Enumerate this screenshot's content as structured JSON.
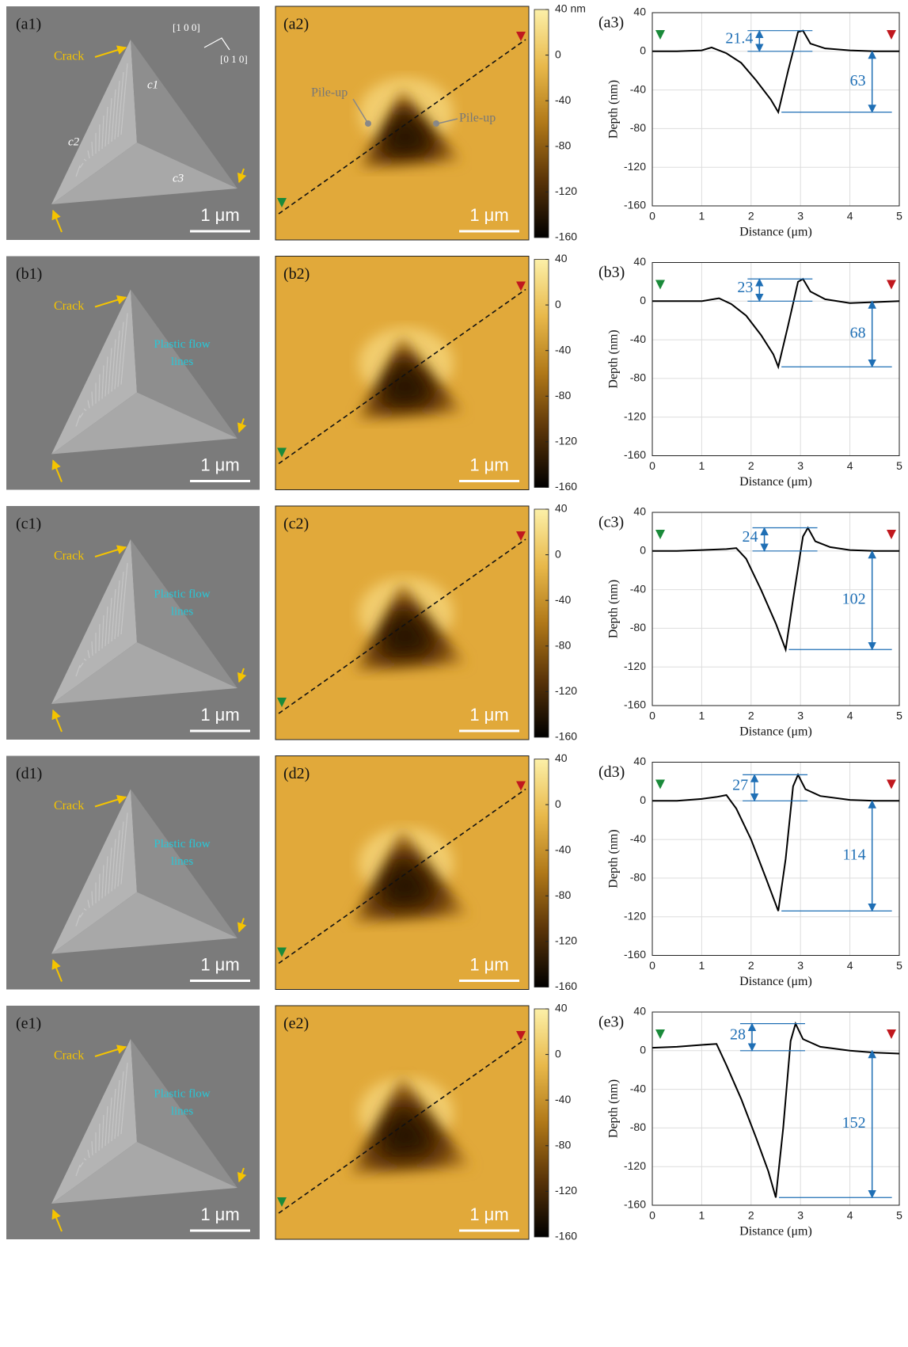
{
  "chart_data": [
    {
      "type": "line",
      "panel_label": "(a3)",
      "xlabel": "Distance (μm)",
      "ylabel": "Depth (nm)",
      "xlim": [
        0,
        5
      ],
      "ylim": [
        -160,
        40
      ],
      "xticks": [
        0,
        1,
        2,
        3,
        4,
        5
      ],
      "yticks": [
        -160,
        -120,
        -80,
        -40,
        0,
        40
      ],
      "grid": true,
      "color": "#000000",
      "x": [
        0,
        0.5,
        1.0,
        1.2,
        1.5,
        1.8,
        2.1,
        2.4,
        2.55,
        2.75,
        2.95,
        3.05,
        3.2,
        3.5,
        4,
        4.5,
        5
      ],
      "values": [
        0,
        0,
        1,
        4,
        -2,
        -12,
        -30,
        -50,
        -63,
        -20,
        20,
        21.4,
        8,
        3,
        1,
        0,
        0
      ],
      "pileup_height": 21.4,
      "max_depth": 63
    },
    {
      "type": "line",
      "panel_label": "(b3)",
      "xlabel": "Distance (μm)",
      "ylabel": "Depth (nm)",
      "xlim": [
        0,
        5
      ],
      "ylim": [
        -160,
        40
      ],
      "xticks": [
        0,
        1,
        2,
        3,
        4,
        5
      ],
      "yticks": [
        -160,
        -120,
        -80,
        -40,
        0,
        40
      ],
      "grid": true,
      "color": "#000000",
      "x": [
        0,
        0.5,
        1.0,
        1.35,
        1.6,
        1.9,
        2.2,
        2.45,
        2.55,
        2.75,
        2.95,
        3.05,
        3.2,
        3.5,
        4,
        4.5,
        5
      ],
      "values": [
        0,
        0,
        0,
        3,
        -3,
        -15,
        -35,
        -55,
        -68,
        -25,
        20,
        23,
        10,
        2,
        -2,
        -1,
        0
      ],
      "pileup_height": 23,
      "max_depth": 68
    },
    {
      "type": "line",
      "panel_label": "(c3)",
      "xlabel": "Distance (μm)",
      "ylabel": "Depth (nm)",
      "xlim": [
        0,
        5
      ],
      "ylim": [
        -160,
        40
      ],
      "xticks": [
        0,
        1,
        2,
        3,
        4,
        5
      ],
      "yticks": [
        -160,
        -120,
        -80,
        -40,
        0,
        40
      ],
      "grid": true,
      "color": "#000000",
      "x": [
        0,
        0.5,
        1.0,
        1.5,
        1.7,
        1.9,
        2.2,
        2.5,
        2.7,
        2.85,
        3.05,
        3.15,
        3.3,
        3.6,
        4,
        4.5,
        5
      ],
      "values": [
        0,
        0,
        1,
        2,
        3,
        -8,
        -40,
        -75,
        -102,
        -50,
        15,
        24,
        10,
        4,
        1,
        0,
        0
      ],
      "pileup_height": 24,
      "max_depth": 102
    },
    {
      "type": "line",
      "panel_label": "(d3)",
      "xlabel": "Distance (μm)",
      "ylabel": "Depth (nm)",
      "xlim": [
        0,
        5
      ],
      "ylim": [
        -160,
        40
      ],
      "xticks": [
        0,
        1,
        2,
        3,
        4,
        5
      ],
      "yticks": [
        -160,
        -120,
        -80,
        -40,
        0,
        40
      ],
      "grid": true,
      "color": "#000000",
      "x": [
        0,
        0.5,
        1.0,
        1.3,
        1.5,
        1.7,
        2.0,
        2.3,
        2.55,
        2.7,
        2.85,
        2.95,
        3.1,
        3.4,
        4,
        4.5,
        5
      ],
      "values": [
        0,
        0,
        2,
        4,
        6,
        -8,
        -40,
        -80,
        -114,
        -60,
        15,
        27,
        12,
        5,
        1,
        0,
        0
      ],
      "pileup_height": 27,
      "max_depth": 114
    },
    {
      "type": "line",
      "panel_label": "(e3)",
      "xlabel": "Distance (μm)",
      "ylabel": "Depth (nm)",
      "xlim": [
        0,
        5
      ],
      "ylim": [
        -160,
        40
      ],
      "xticks": [
        0,
        1,
        2,
        3,
        4,
        5
      ],
      "yticks": [
        -160,
        -120,
        -80,
        -40,
        0,
        40
      ],
      "grid": true,
      "color": "#000000",
      "x": [
        0,
        0.5,
        1.0,
        1.3,
        1.5,
        1.8,
        2.1,
        2.35,
        2.5,
        2.65,
        2.8,
        2.9,
        3.05,
        3.4,
        4,
        4.5,
        5
      ],
      "values": [
        3,
        4,
        6,
        7,
        -15,
        -50,
        -90,
        -125,
        -152,
        -80,
        10,
        28,
        12,
        4,
        0,
        -2,
        -3
      ],
      "pileup_height": 28,
      "max_depth": 152
    }
  ],
  "sem_images": [
    {
      "panel_label": "(a1)",
      "crack_label": "Crack",
      "scale_bar": "1 μm",
      "direction_labels": [
        "[1 0 0]",
        "[0 1 0]"
      ],
      "edge_labels": [
        "c1",
        "c2",
        "c3"
      ]
    },
    {
      "panel_label": "(b1)",
      "crack_label": "Crack",
      "scale_bar": "1 μm",
      "flow_label": [
        "Plastic flow",
        "lines"
      ]
    },
    {
      "panel_label": "(c1)",
      "crack_label": "Crack",
      "scale_bar": "1 μm",
      "flow_label": [
        "Plastic flow",
        "lines"
      ]
    },
    {
      "panel_label": "(d1)",
      "crack_label": "Crack",
      "scale_bar": "1 μm",
      "flow_label": [
        "Plastic flow",
        "lines"
      ]
    },
    {
      "panel_label": "(e1)",
      "crack_label": "Crack",
      "scale_bar": "1 μm",
      "flow_label": [
        "Plastic flow",
        "lines"
      ]
    }
  ],
  "afm_maps": [
    {
      "panel_label": "(a2)",
      "scale_bar": "1 μm",
      "pileup_labels": [
        "Pile-up",
        "Pile-up"
      ],
      "clim": [
        -160,
        40
      ],
      "colorbar_ticks": [
        {
          "value": 40,
          "label": "40 nm"
        },
        0,
        -40,
        -80,
        -120,
        -160
      ]
    },
    {
      "panel_label": "(b2)",
      "scale_bar": "1 μm",
      "clim": [
        -160,
        40
      ],
      "colorbar_ticks": [
        40,
        0,
        -40,
        -80,
        -120,
        -160
      ]
    },
    {
      "panel_label": "(c2)",
      "scale_bar": "1 μm",
      "clim": [
        -160,
        40
      ],
      "colorbar_ticks": [
        40,
        0,
        -40,
        -80,
        -120,
        -160
      ]
    },
    {
      "panel_label": "(d2)",
      "scale_bar": "1 μm",
      "clim": [
        -160,
        40
      ],
      "colorbar_ticks": [
        40,
        0,
        -40,
        -80,
        -120,
        -160
      ]
    },
    {
      "panel_label": "(e2)",
      "scale_bar": "1 μm",
      "clim": [
        -160,
        40
      ],
      "colorbar_ticks": [
        40,
        0,
        -40,
        -80,
        -120,
        -160
      ]
    }
  ]
}
